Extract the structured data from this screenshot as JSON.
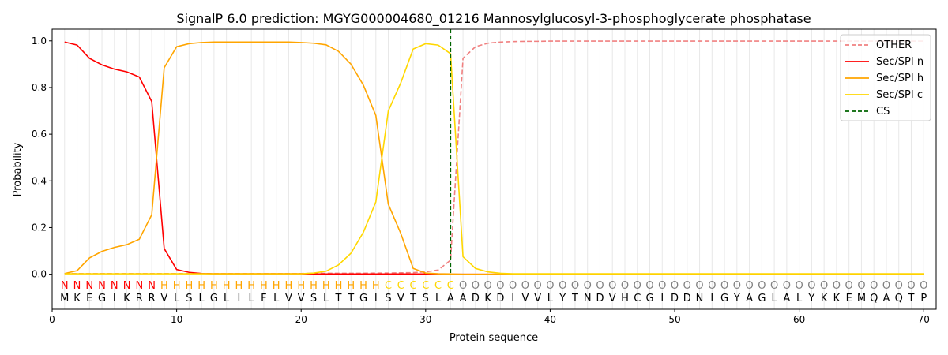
{
  "chart_data": {
    "type": "line",
    "title": "SignalP 6.0 prediction: MGYG000004680_01216 Mannosylglucosyl-3-phosphoglycerate phosphatase",
    "xlabel": "Protein sequence",
    "ylabel": "Probability",
    "xlim": [
      0,
      71
    ],
    "ylim": [
      -0.15,
      1.05
    ],
    "xticks": [
      0,
      10,
      20,
      30,
      40,
      50,
      60,
      70
    ],
    "yticks": [
      0.0,
      0.2,
      0.4,
      0.6,
      0.8,
      1.0
    ],
    "ytick_labels": [
      "0.0",
      "0.2",
      "0.4",
      "0.6",
      "0.8",
      "1.0"
    ],
    "legend_position": "top-right",
    "sequence": [
      "M",
      "K",
      "E",
      "G",
      "I",
      "K",
      "R",
      "R",
      "V",
      "L",
      "S",
      "L",
      "G",
      "L",
      "I",
      "L",
      "F",
      "L",
      "V",
      "V",
      "S",
      "L",
      "T",
      "T",
      "G",
      "I",
      "S",
      "V",
      "T",
      "S",
      "L",
      "A",
      "A",
      "D",
      "K",
      "D",
      "I",
      "V",
      "V",
      "L",
      "Y",
      "T",
      "N",
      "D",
      "V",
      "H",
      "C",
      "G",
      "I",
      "D",
      "D",
      "N",
      "I",
      "G",
      "Y",
      "A",
      "G",
      "L",
      "A",
      "L",
      "Y",
      "K",
      "K",
      "E",
      "M",
      "Q",
      "A",
      "Q",
      "T",
      "P"
    ],
    "region_labels": "NNNNNNNNHHHHHHHHHHHHHHHHHHCCCCCCOOOOOOOOOOOOOOOOOOOOOOOOOOOOOOOOOOOOOO",
    "region_colors": {
      "N": "#ff0000",
      "H": "#ffa500",
      "C": "#ffd700",
      "O": "#808080"
    },
    "cs_position": 32,
    "series": [
      {
        "name": "OTHER",
        "color": "#f08080",
        "dash": true,
        "values": [
          0.003,
          0.003,
          0.003,
          0.003,
          0.003,
          0.003,
          0.003,
          0.003,
          0.003,
          0.003,
          0.003,
          0.003,
          0.003,
          0.003,
          0.003,
          0.003,
          0.003,
          0.003,
          0.003,
          0.003,
          0.004,
          0.004,
          0.004,
          0.004,
          0.004,
          0.005,
          0.005,
          0.006,
          0.007,
          0.01,
          0.018,
          0.06,
          0.925,
          0.975,
          0.99,
          0.995,
          0.997,
          0.998,
          0.998,
          0.999,
          0.999,
          0.999,
          0.999,
          0.999,
          0.999,
          0.999,
          0.999,
          0.999,
          0.999,
          0.999,
          0.999,
          0.999,
          0.999,
          0.999,
          0.999,
          0.999,
          0.999,
          0.999,
          0.999,
          0.999,
          0.999,
          0.999,
          0.999,
          0.999,
          0.999,
          0.999,
          0.999,
          0.999,
          0.999,
          0.999
        ]
      },
      {
        "name": "Sec/SPI n",
        "color": "#ff0000",
        "dash": false,
        "values": [
          0.995,
          0.982,
          0.925,
          0.897,
          0.879,
          0.867,
          0.845,
          0.74,
          0.11,
          0.02,
          0.008,
          0.003,
          0.002,
          0.002,
          0.002,
          0.002,
          0.002,
          0.002,
          0.002,
          0.002,
          0.001,
          0.001,
          0.001,
          0.001,
          0.001,
          0.001,
          0.001,
          0.001,
          0.001,
          0.001,
          0.001,
          0,
          0,
          0,
          0,
          0,
          0,
          0,
          0,
          0,
          0,
          0,
          0,
          0,
          0,
          0,
          0,
          0,
          0,
          0,
          0,
          0,
          0,
          0,
          0,
          0,
          0,
          0,
          0,
          0,
          0,
          0,
          0,
          0,
          0,
          0,
          0,
          0,
          0,
          0
        ]
      },
      {
        "name": "Sec/SPI h",
        "color": "#ffa500",
        "dash": false,
        "values": [
          0.003,
          0.015,
          0.07,
          0.098,
          0.115,
          0.127,
          0.15,
          0.255,
          0.885,
          0.975,
          0.988,
          0.993,
          0.995,
          0.995,
          0.995,
          0.995,
          0.995,
          0.995,
          0.995,
          0.993,
          0.99,
          0.983,
          0.955,
          0.9,
          0.81,
          0.68,
          0.3,
          0.175,
          0.025,
          0.005,
          0.002,
          0.001,
          0,
          0,
          0,
          0,
          0,
          0,
          0,
          0,
          0,
          0,
          0,
          0,
          0,
          0,
          0,
          0,
          0,
          0,
          0,
          0,
          0,
          0,
          0,
          0,
          0,
          0,
          0,
          0,
          0,
          0,
          0,
          0,
          0,
          0,
          0,
          0,
          0,
          0
        ]
      },
      {
        "name": "Sec/SPI c",
        "color": "#ffd700",
        "dash": false,
        "values": [
          0.002,
          0.002,
          0.002,
          0.002,
          0.002,
          0.002,
          0.002,
          0.002,
          0.002,
          0.002,
          0.002,
          0.002,
          0.002,
          0.002,
          0.002,
          0.002,
          0.002,
          0.002,
          0.002,
          0.002,
          0.005,
          0.013,
          0.04,
          0.09,
          0.18,
          0.31,
          0.7,
          0.82,
          0.965,
          0.988,
          0.982,
          0.945,
          0.075,
          0.025,
          0.01,
          0.004,
          0.002,
          0.002,
          0.002,
          0.002,
          0.002,
          0.002,
          0.002,
          0.002,
          0.002,
          0.002,
          0.002,
          0.002,
          0.002,
          0.002,
          0.002,
          0.002,
          0.002,
          0.002,
          0.002,
          0.002,
          0.002,
          0.002,
          0.002,
          0.002,
          0.002,
          0.002,
          0.002,
          0.002,
          0.002,
          0.002,
          0.002,
          0.002,
          0.002,
          0.002
        ]
      }
    ],
    "legend": [
      "OTHER",
      "Sec/SPI n",
      "Sec/SPI h",
      "Sec/SPI c",
      "CS"
    ],
    "cs_color": "#006400"
  }
}
